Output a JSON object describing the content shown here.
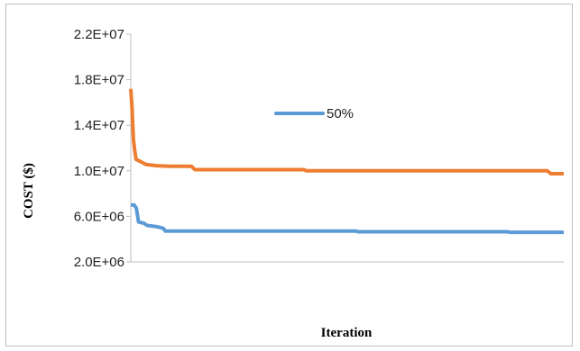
{
  "chart_data": {
    "type": "line",
    "xlabel": "Iteration",
    "ylabel": "COST ($)",
    "ylim": [
      2000000,
      22000000
    ],
    "yticks": [
      {
        "value": 2000000,
        "label": "2.0E+06"
      },
      {
        "value": 6000000,
        "label": "6.0E+06"
      },
      {
        "value": 10000000,
        "label": "1.0E+07"
      },
      {
        "value": 14000000,
        "label": "1.4E+07"
      },
      {
        "value": 18000000,
        "label": "1.8E+07"
      },
      {
        "value": 22000000,
        "label": "2.2E+07"
      }
    ],
    "xlim": [
      0,
      1000
    ],
    "grid": false,
    "legend": {
      "position": "center",
      "entries": [
        "50%"
      ]
    },
    "series": [
      {
        "name": "50%",
        "color": "#5b9bd5",
        "points": [
          [
            0,
            7000000
          ],
          [
            8,
            7000000
          ],
          [
            13,
            6700000
          ],
          [
            18,
            5500000
          ],
          [
            30,
            5400000
          ],
          [
            38,
            5200000
          ],
          [
            60,
            5100000
          ],
          [
            75,
            4950000
          ],
          [
            80,
            4700000
          ],
          [
            350,
            4700000
          ],
          [
            520,
            4700000
          ],
          [
            525,
            4650000
          ],
          [
            870,
            4650000
          ],
          [
            875,
            4600000
          ],
          [
            1000,
            4600000
          ]
        ]
      },
      {
        "color": "#ed7d31",
        "points": [
          [
            0,
            17200000
          ],
          [
            3,
            15500000
          ],
          [
            6,
            12800000
          ],
          [
            9,
            11800000
          ],
          [
            12,
            11000000
          ],
          [
            28,
            10700000
          ],
          [
            35,
            10550000
          ],
          [
            60,
            10450000
          ],
          [
            90,
            10400000
          ],
          [
            140,
            10400000
          ],
          [
            148,
            10100000
          ],
          [
            400,
            10100000
          ],
          [
            405,
            10000000
          ],
          [
            962,
            10000000
          ],
          [
            970,
            9750000
          ],
          [
            1000,
            9750000
          ]
        ]
      }
    ]
  }
}
